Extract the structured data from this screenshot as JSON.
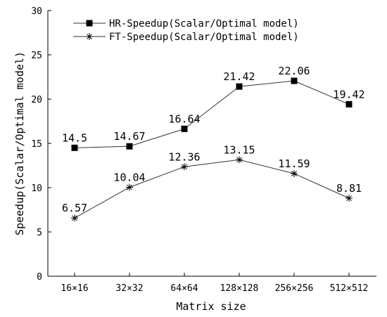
{
  "chart_data": {
    "type": "line",
    "xlabel": "Matrix size",
    "ylabel": "Speedup(Scalar/Optimal model)",
    "categories": [
      "16×16",
      "32×32",
      "64×64",
      "128×128",
      "256×256",
      "512×512"
    ],
    "ylim": [
      0,
      30
    ],
    "yticks": [
      0,
      5,
      10,
      15,
      20,
      25,
      30
    ],
    "legend_position": "top-center",
    "grid": false,
    "series": [
      {
        "name": "HR-Speedup(Scalar/Optimal model)",
        "marker": "square",
        "color": "#000000",
        "values": [
          14.5,
          14.67,
          16.64,
          21.42,
          22.06,
          19.42
        ],
        "labels": [
          "14.5",
          "14.67",
          "16.64",
          "21.42",
          "22.06",
          "19.42"
        ]
      },
      {
        "name": "FT-Speedup(Scalar/Optimal model)",
        "marker": "asterisk",
        "color": "#000000",
        "values": [
          6.57,
          10.04,
          12.36,
          13.15,
          11.59,
          8.81
        ],
        "labels": [
          "6.57",
          "10.04",
          "12.36",
          "13.15",
          "11.59",
          "8.81"
        ]
      }
    ]
  }
}
